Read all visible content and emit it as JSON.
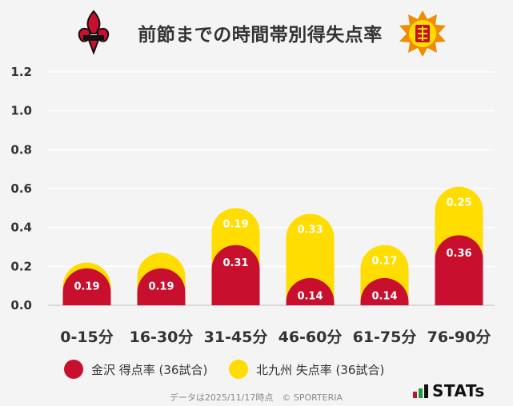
{
  "header": {
    "title": "前節までの時間帯別得失点率"
  },
  "legend": {
    "items": [
      {
        "label": "金沢 得点率 (36試合)",
        "color": "#c8102e"
      },
      {
        "label": "北九州 失点率 (36試合)",
        "color": "#ffdd00"
      }
    ]
  },
  "footer": {
    "note": "データは2025/11/17時点　© SPORTERIA"
  },
  "brand": {
    "name": "STATs"
  },
  "chart_data": {
    "type": "bar",
    "stacked": true,
    "categories": [
      "0-15分",
      "16-30分",
      "31-45分",
      "46-60分",
      "61-75分",
      "76-90分"
    ],
    "series": [
      {
        "name": "金沢 得点率 (36試合)",
        "color": "#c8102e",
        "values": [
          0.19,
          0.19,
          0.31,
          0.14,
          0.14,
          0.36
        ]
      },
      {
        "name": "北九州 失点率 (36試合)",
        "color": "#ffdd00",
        "values": [
          0.03,
          0.08,
          0.19,
          0.33,
          0.17,
          0.25
        ]
      }
    ],
    "ylim": [
      0,
      1.2
    ],
    "yticks": [
      "0.0",
      "0.2",
      "0.4",
      "0.6",
      "0.8",
      "1.0",
      "1.2"
    ],
    "grid": true
  }
}
